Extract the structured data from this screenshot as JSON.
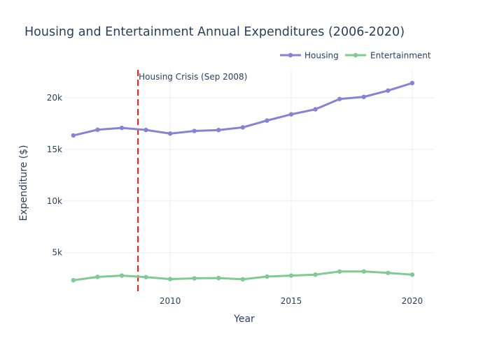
{
  "colors": {
    "housing": "#8683d6",
    "entertainment": "#7fcb93",
    "annotation_line": "#e8161b",
    "text": "#2a3f5f",
    "grid": "#ebeef2"
  },
  "chart_data": {
    "type": "line",
    "title": "Housing and Entertainment Annual Expenditures (2006-2020)",
    "xlabel": "Year",
    "ylabel": "Expenditure ($)",
    "x": [
      2006,
      2007,
      2008,
      2009,
      2010,
      2011,
      2012,
      2013,
      2014,
      2015,
      2016,
      2017,
      2018,
      2019,
      2020
    ],
    "series": [
      {
        "name": "Housing",
        "color": "#8683d6",
        "values": [
          16350,
          16900,
          17080,
          16880,
          16530,
          16780,
          16870,
          17130,
          17790,
          18390,
          18880,
          19880,
          20080,
          20690,
          21420
        ]
      },
      {
        "name": "Entertainment",
        "color": "#7fcb93",
        "values": [
          2330,
          2650,
          2780,
          2630,
          2440,
          2510,
          2540,
          2420,
          2680,
          2780,
          2870,
          3170,
          3180,
          3040,
          2870
        ]
      }
    ],
    "xlim": [
      2005.6,
      2020.9
    ],
    "ylim": [
      1060,
      22700
    ],
    "x_ticks": [
      2010,
      2015,
      2020
    ],
    "y_ticks": [
      5000,
      10000,
      15000,
      20000
    ],
    "y_tick_labels": [
      "5k",
      "10k",
      "15k",
      "20k"
    ],
    "grid": true,
    "legend_position": "top-right",
    "annotations": [
      {
        "x": 2008.67,
        "label": "Housing Crisis (Sep 2008)",
        "style": "dashed-vertical-line"
      }
    ]
  }
}
